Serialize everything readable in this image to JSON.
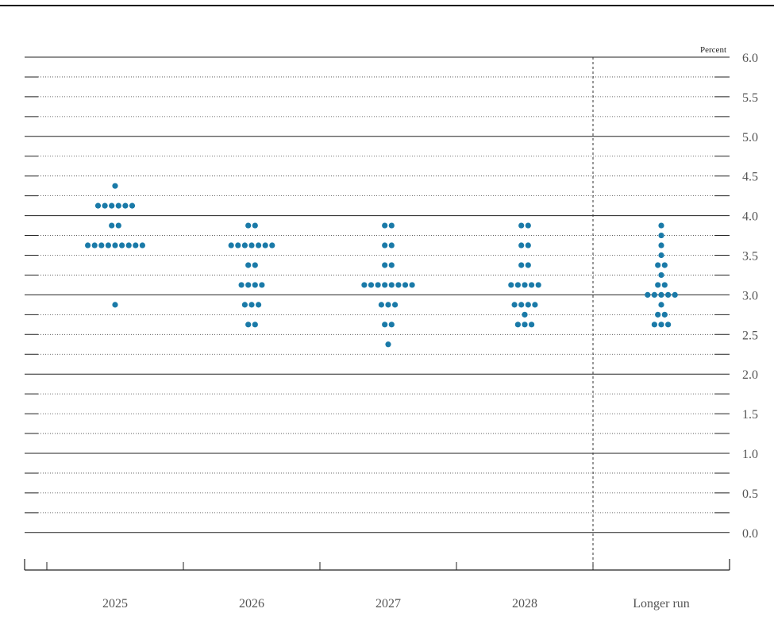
{
  "chart_data": {
    "type": "scatter",
    "unit_label": "Percent",
    "ylim": [
      -0.25,
      6.0
    ],
    "y_ticks": [
      "0.0",
      "0.5",
      "1.0",
      "1.5",
      "2.0",
      "2.5",
      "3.0",
      "3.5",
      "4.0",
      "4.5",
      "5.0",
      "5.5",
      "6.0"
    ],
    "categories": [
      "2025",
      "2026",
      "2027",
      "2028",
      "Longer run"
    ],
    "dot_color": "#1a7aa8",
    "points": [
      {
        "category": "2025",
        "values": [
          {
            "y": 4.375,
            "count": 1
          },
          {
            "y": 4.125,
            "count": 6
          },
          {
            "y": 3.875,
            "count": 2
          },
          {
            "y": 3.625,
            "count": 9
          },
          {
            "y": 2.875,
            "count": 1
          }
        ]
      },
      {
        "category": "2026",
        "values": [
          {
            "y": 3.875,
            "count": 2
          },
          {
            "y": 3.625,
            "count": 7
          },
          {
            "y": 3.375,
            "count": 2
          },
          {
            "y": 3.125,
            "count": 4
          },
          {
            "y": 2.875,
            "count": 3
          },
          {
            "y": 2.625,
            "count": 2
          }
        ]
      },
      {
        "category": "2027",
        "values": [
          {
            "y": 3.875,
            "count": 2
          },
          {
            "y": 3.625,
            "count": 2
          },
          {
            "y": 3.375,
            "count": 2
          },
          {
            "y": 3.125,
            "count": 8
          },
          {
            "y": 2.875,
            "count": 3
          },
          {
            "y": 2.625,
            "count": 2
          },
          {
            "y": 2.375,
            "count": 1
          }
        ]
      },
      {
        "category": "2028",
        "values": [
          {
            "y": 3.875,
            "count": 2
          },
          {
            "y": 3.625,
            "count": 2
          },
          {
            "y": 3.375,
            "count": 2
          },
          {
            "y": 3.125,
            "count": 5
          },
          {
            "y": 2.875,
            "count": 4
          },
          {
            "y": 2.75,
            "count": 1
          },
          {
            "y": 2.625,
            "count": 3
          }
        ]
      },
      {
        "category": "Longer run",
        "values": [
          {
            "y": 3.875,
            "count": 1
          },
          {
            "y": 3.75,
            "count": 1
          },
          {
            "y": 3.625,
            "count": 1
          },
          {
            "y": 3.5,
            "count": 1
          },
          {
            "y": 3.375,
            "count": 2
          },
          {
            "y": 3.25,
            "count": 1
          },
          {
            "y": 3.125,
            "count": 2
          },
          {
            "y": 3.0,
            "count": 5
          },
          {
            "y": 2.875,
            "count": 1
          },
          {
            "y": 2.75,
            "count": 2
          },
          {
            "y": 2.625,
            "count": 3
          }
        ]
      }
    ],
    "separator_before": "Longer run",
    "grid": true
  }
}
